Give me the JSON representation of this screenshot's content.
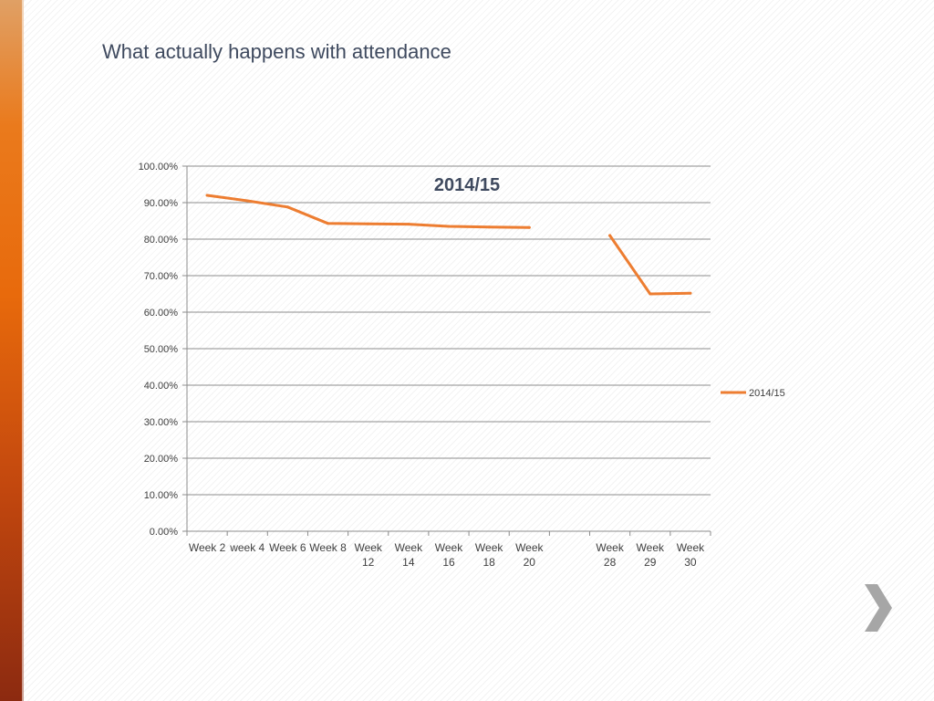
{
  "slide": {
    "title": "What actually happens with attendance"
  },
  "chart_data": {
    "type": "line",
    "title": "2014/15",
    "xlabel": "",
    "ylabel": "",
    "categories": [
      [
        "Week 2"
      ],
      [
        "week 4"
      ],
      [
        "Week 6"
      ],
      [
        "Week 8"
      ],
      [
        "Week",
        "12"
      ],
      [
        "Week",
        "14"
      ],
      [
        "Week",
        "16"
      ],
      [
        "Week",
        "18"
      ],
      [
        "Week",
        "20"
      ],
      [
        ""
      ],
      [
        "Week",
        "28"
      ],
      [
        "Week",
        "29"
      ],
      [
        "Week",
        "30"
      ]
    ],
    "series": [
      {
        "name": "2014/15",
        "color": "#ED7D31",
        "values": [
          0.92,
          0.905,
          0.888,
          0.843,
          0.842,
          0.841,
          0.835,
          0.833,
          0.832,
          null,
          0.81,
          0.65,
          0.652
        ]
      }
    ],
    "ylim": [
      0,
      1
    ],
    "yticks": [
      "0.00%",
      "10.00%",
      "20.00%",
      "30.00%",
      "40.00%",
      "50.00%",
      "60.00%",
      "70.00%",
      "80.00%",
      "90.00%",
      "100.00%"
    ],
    "grid": true,
    "legend": "right"
  },
  "colors": {
    "line": "#ED7D31",
    "gridline": "#8c8c8c",
    "axis_text": "#404040",
    "chart_title": "#3f4a5f",
    "nav_arrow": "#a6a6a6"
  },
  "icons": {
    "next": "chevron-right-icon"
  }
}
